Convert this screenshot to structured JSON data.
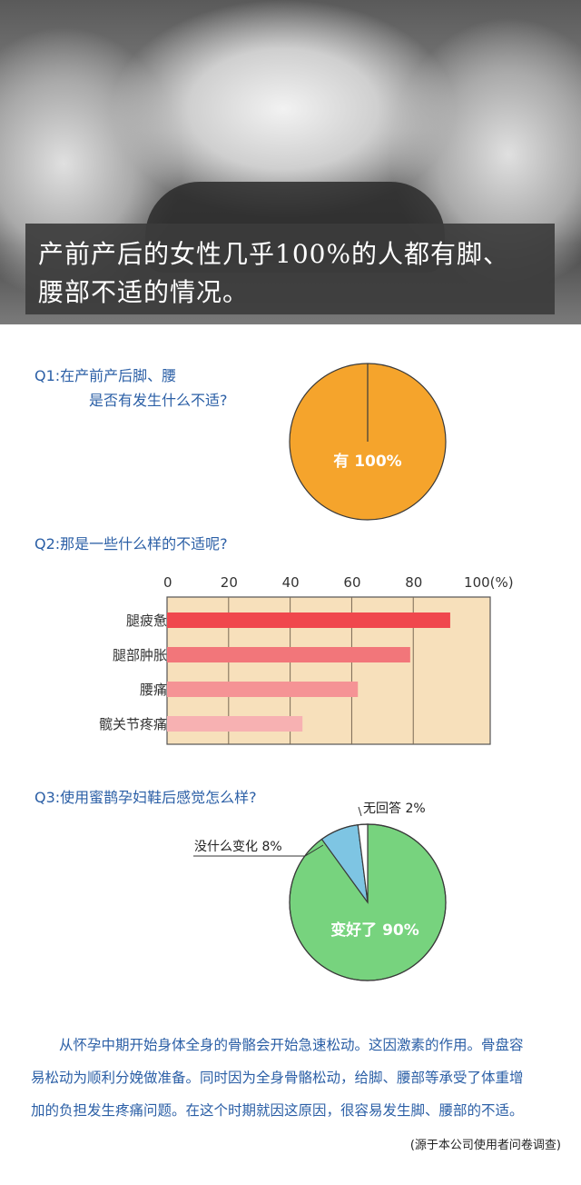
{
  "hero": {
    "caption_line1": "产前产后的女性几乎100%的人都有脚、",
    "caption_line2": "腰部不适的情况。"
  },
  "q1": {
    "label_line1": "Q1:在产前产后脚、腰",
    "label_line2": "是否有发生什么不适?"
  },
  "q2": {
    "label": "Q2:那是一些什么样的不适呢?"
  },
  "q3": {
    "label": "Q3:使用蜜鹊孕妇鞋后感觉怎么样?"
  },
  "chart_data": [
    {
      "type": "pie",
      "categories": [
        "有"
      ],
      "values": [
        100
      ],
      "data_labels": [
        "有  100%"
      ],
      "colors": [
        "#f5a42c"
      ]
    },
    {
      "type": "bar",
      "orientation": "horizontal",
      "categories": [
        "腿疲惫",
        "腿部肿胀",
        "腰痛",
        "髋关节疼痛"
      ],
      "values": [
        92,
        79,
        62,
        44
      ],
      "x_ticks": [
        "0",
        "20",
        "40",
        "60",
        "80",
        "100(%)"
      ],
      "xlim": [
        0,
        105
      ],
      "colors": [
        "#f0474d",
        "#f2767a",
        "#f59395",
        "#f7b1b2"
      ],
      "background": "#f7e0bb",
      "grid": true
    },
    {
      "type": "pie",
      "categories": [
        "变好了",
        "没什么变化",
        "无回答"
      ],
      "values": [
        90,
        8,
        2
      ],
      "data_labels": [
        "变好了  90%",
        "没什么变化  8%",
        "无回答  2%"
      ],
      "colors": [
        "#77d37e",
        "#7ec5e3",
        "#ffffff"
      ]
    }
  ],
  "body": {
    "line1": "从怀孕中期开始身体全身的骨骼会开始急速松动。这因激素的作用。骨盘容",
    "line2": "易松动为顺利分娩做准备。同时因为全身骨骼松动，给脚、腰部等承受了体重增",
    "line3": "加的负担发生疼痛问题。在这个时期就因这原因，很容易发生脚、腰部的不适。"
  },
  "source": "(源于本公司使用者问卷调查)"
}
